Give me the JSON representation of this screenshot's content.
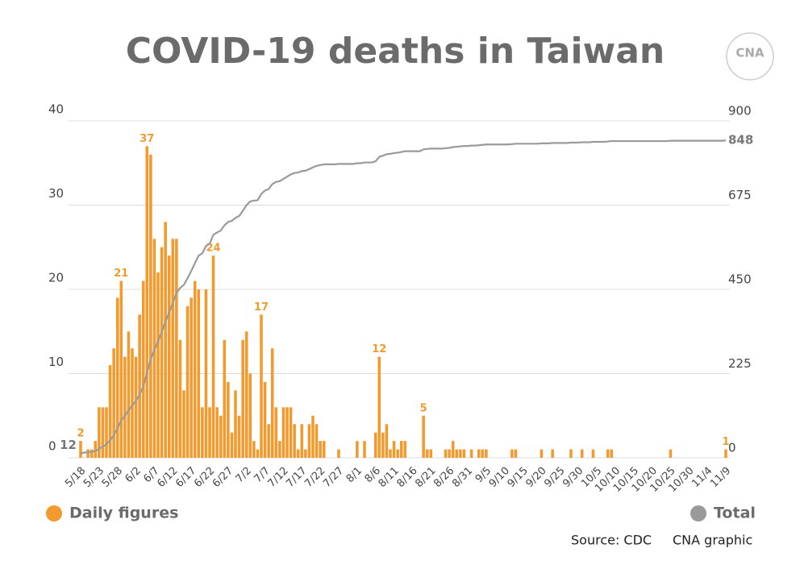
{
  "chart_data": {
    "type": "bar",
    "title": "COVID-19 deaths in Taiwan",
    "logo": "CNA",
    "source": "Source: CDC",
    "credit": "CNA graphic",
    "categories": [
      "5/18",
      null,
      null,
      null,
      null,
      "5/23",
      null,
      null,
      null,
      null,
      "5/28",
      null,
      null,
      null,
      null,
      "6/2",
      null,
      null,
      null,
      null,
      "6/7",
      null,
      null,
      null,
      null,
      "6/12",
      null,
      null,
      null,
      null,
      "6/17",
      null,
      null,
      null,
      null,
      "6/22",
      null,
      null,
      null,
      null,
      "6/27",
      null,
      null,
      null,
      null,
      "7/2",
      null,
      null,
      null,
      null,
      "7/7",
      null,
      null,
      null,
      null,
      "7/12",
      null,
      null,
      null,
      null,
      "7/17",
      null,
      null,
      null,
      null,
      "7/22",
      null,
      null,
      null,
      null,
      "7/27",
      null,
      null,
      null,
      null,
      "8/1",
      null,
      null,
      null,
      null,
      "8/6",
      null,
      null,
      null,
      null,
      "8/11",
      null,
      null,
      null,
      null,
      "8/16",
      null,
      null,
      null,
      null,
      "8/21",
      null,
      null,
      null,
      null,
      "8/26",
      null,
      null,
      null,
      null,
      "8/31",
      null,
      null,
      null,
      null,
      "9/5",
      null,
      null,
      null,
      null,
      "9/10",
      null,
      null,
      null,
      null,
      "9/15",
      null,
      null,
      null,
      null,
      "9/20",
      null,
      null,
      null,
      null,
      "9/25",
      null,
      null,
      null,
      null,
      "9/30",
      null,
      null,
      null,
      null,
      "10/5",
      null,
      null,
      null,
      null,
      "10/10",
      null,
      null,
      null,
      null,
      "10/15",
      null,
      null,
      null,
      null,
      "10/20",
      null,
      null,
      null,
      null,
      "10/25",
      null,
      null,
      null,
      null,
      "10/30",
      null,
      null,
      null,
      null,
      "11/4",
      null,
      null,
      null,
      null,
      "11/9"
    ],
    "series": [
      {
        "name": "Daily figures",
        "color": "#f39a2e",
        "axis": "y",
        "values": [
          2,
          0,
          1,
          1,
          2,
          6,
          6,
          6,
          11,
          13,
          19,
          21,
          12,
          15,
          13,
          12,
          17,
          21,
          37,
          36,
          26,
          22,
          25,
          28,
          24,
          26,
          26,
          14,
          8,
          18,
          19,
          21,
          20,
          6,
          20,
          6,
          24,
          6,
          5,
          14,
          9,
          3,
          8,
          5,
          14,
          15,
          10,
          2,
          1,
          17,
          9,
          4,
          13,
          6,
          2,
          6,
          6,
          6,
          4,
          1,
          4,
          1,
          4,
          5,
          4,
          2,
          2,
          0,
          0,
          0,
          1,
          0,
          0,
          0,
          0,
          2,
          0,
          2,
          0,
          0,
          3,
          12,
          3,
          4,
          1,
          2,
          1,
          2,
          2,
          0,
          0,
          0,
          0,
          5,
          1,
          1,
          0,
          0,
          0,
          1,
          1,
          2,
          1,
          1,
          1,
          0,
          1,
          0,
          1,
          1,
          1,
          0,
          0,
          0,
          0,
          0,
          0,
          1,
          1,
          0,
          0,
          0,
          0,
          0,
          0,
          1,
          0,
          0,
          1,
          0,
          0,
          0,
          0,
          1,
          0,
          0,
          1,
          0,
          0,
          1,
          0,
          0,
          0,
          1,
          1,
          0,
          0,
          0,
          0,
          0,
          0,
          0,
          0,
          0,
          0,
          0,
          0,
          0,
          0,
          0,
          1,
          0,
          0,
          0,
          0,
          0,
          0,
          0,
          0,
          0,
          0,
          0,
          0,
          0,
          0,
          1
        ],
        "value_labels": [
          "2",
          null,
          null,
          null,
          null,
          null,
          null,
          null,
          null,
          null,
          null,
          "21",
          null,
          null,
          null,
          null,
          null,
          null,
          "37",
          null,
          null,
          null,
          null,
          null,
          null,
          null,
          null,
          null,
          null,
          null,
          null,
          null,
          null,
          null,
          null,
          null,
          "24",
          null,
          null,
          null,
          null,
          null,
          null,
          null,
          null,
          null,
          null,
          null,
          null,
          "17",
          null,
          null,
          null,
          null,
          null,
          null,
          null,
          null,
          null,
          null,
          null,
          null,
          null,
          null,
          null,
          null,
          null,
          null,
          null,
          null,
          null,
          null,
          null,
          null,
          null,
          null,
          null,
          null,
          null,
          null,
          null,
          "12",
          null,
          null,
          null,
          null,
          null,
          null,
          null,
          null,
          null,
          null,
          null,
          "5",
          null,
          null,
          null,
          null,
          null,
          null,
          null,
          null,
          null,
          null,
          null,
          null,
          null,
          null,
          null,
          null,
          null,
          null,
          null,
          null,
          null,
          null,
          null,
          null,
          null,
          null,
          null,
          null,
          null,
          null,
          null,
          null,
          null,
          null,
          null,
          null,
          null,
          null,
          null,
          null,
          null,
          null,
          null,
          null,
          null,
          null,
          null,
          null,
          null,
          null,
          null,
          null,
          null,
          null,
          null,
          null,
          null,
          null,
          null,
          null,
          null,
          null,
          null,
          null,
          null,
          null,
          null,
          null,
          null,
          null,
          null,
          null,
          null,
          null,
          null,
          null,
          null,
          null,
          null,
          null,
          null,
          "1"
        ]
      },
      {
        "name": "Total",
        "color": "#9a9a9a",
        "axis": "y2",
        "values": [
          12,
          14,
          15,
          16,
          18,
          24,
          30,
          36,
          47,
          60,
          79,
          100,
          112,
          127,
          140,
          152,
          169,
          190,
          227,
          263,
          289,
          311,
          336,
          364,
          388,
          414,
          440,
          454,
          462,
          480,
          499,
          520,
          540,
          546,
          566,
          572,
          596,
          602,
          607,
          621,
          630,
          633,
          641,
          646,
          660,
          675,
          685,
          687,
          688,
          705,
          714,
          718,
          731,
          737,
          739,
          745,
          751,
          757,
          761,
          762,
          766,
          767,
          771,
          776,
          780,
          782,
          784,
          784,
          784,
          784,
          785,
          785,
          785,
          785,
          785,
          787,
          787,
          789,
          789,
          789,
          792,
          804,
          807,
          811,
          812,
          814,
          815,
          817,
          819,
          819,
          819,
          819,
          819,
          824,
          825,
          826,
          826,
          826,
          826,
          827,
          828,
          830,
          831,
          832,
          833,
          833,
          834,
          834,
          835,
          836,
          837,
          837,
          837,
          837,
          837,
          837,
          837,
          838,
          839,
          839,
          839,
          839,
          839,
          839,
          839,
          840,
          840,
          840,
          841,
          841,
          841,
          841,
          841,
          842,
          842,
          842,
          843,
          843,
          843,
          844,
          844,
          844,
          844,
          845,
          846,
          846,
          846,
          846,
          846,
          846,
          846,
          846,
          846,
          846,
          846,
          846,
          846,
          846,
          846,
          846,
          847,
          847,
          847,
          847,
          847,
          847,
          847,
          847,
          847,
          847,
          847,
          847,
          847,
          847,
          847,
          848
        ],
        "value_labels": [
          "12",
          null,
          null,
          null,
          null,
          null,
          null,
          null,
          null,
          null,
          null,
          null,
          null,
          null,
          null,
          null,
          null,
          null,
          null,
          null,
          null,
          null,
          null,
          null,
          null,
          null,
          null,
          null,
          null,
          null,
          null,
          null,
          null,
          null,
          null,
          null,
          null,
          null,
          null,
          null,
          null,
          null,
          null,
          null,
          null,
          null,
          null,
          null,
          null,
          null,
          null,
          null,
          null,
          null,
          null,
          null,
          null,
          null,
          null,
          null,
          null,
          null,
          null,
          null,
          null,
          null,
          null,
          null,
          null,
          null,
          null,
          null,
          null,
          null,
          null,
          null,
          null,
          null,
          null,
          null,
          null,
          null,
          null,
          null,
          null,
          null,
          null,
          null,
          null,
          null,
          null,
          null,
          null,
          null,
          null,
          null,
          null,
          null,
          null,
          null,
          null,
          null,
          null,
          null,
          null,
          null,
          null,
          null,
          null,
          null,
          null,
          null,
          null,
          null,
          null,
          null,
          null,
          null,
          null,
          null,
          null,
          null,
          null,
          null,
          null,
          null,
          null,
          null,
          null,
          null,
          null,
          null,
          null,
          null,
          null,
          null,
          null,
          null,
          null,
          null,
          null,
          null,
          null,
          null,
          null,
          null,
          null,
          null,
          null,
          null,
          null,
          null,
          null,
          null,
          null,
          null,
          null,
          null,
          null,
          null,
          null,
          null,
          null,
          null,
          null,
          null,
          null,
          null,
          null,
          null,
          null,
          null,
          null,
          null,
          null,
          "848"
        ]
      }
    ],
    "ylim": [
      0,
      40
    ],
    "yticks": [
      0,
      10,
      20,
      30,
      40
    ],
    "y2lim": [
      0,
      900
    ],
    "y2ticks": [
      0,
      225,
      450,
      675,
      900
    ],
    "grid": true
  }
}
